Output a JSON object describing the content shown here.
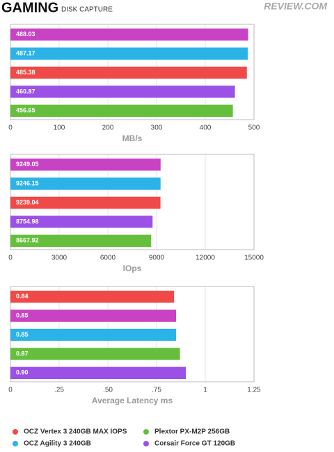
{
  "header": {
    "title": "GAMING",
    "subtitle": "DISK CAPTURE",
    "logo": "REVIEW.COM"
  },
  "chart_data": [
    {
      "type": "bar",
      "orientation": "horizontal",
      "xlabel": "MB/s",
      "values": [
        488.03,
        487.17,
        485.38,
        460.87,
        456.65
      ],
      "colors": [
        "#c843c4",
        "#2bb3e8",
        "#ef4a48",
        "#9b50e6",
        "#65bf3c"
      ],
      "xlim": [
        0,
        500
      ],
      "xticks": [
        0,
        100,
        200,
        300,
        400,
        500
      ],
      "grid": true
    },
    {
      "type": "bar",
      "orientation": "horizontal",
      "xlabel": "IOps",
      "values": [
        9249.05,
        9246.15,
        9239.04,
        8754.98,
        8667.92
      ],
      "colors": [
        "#c843c4",
        "#2bb3e8",
        "#ef4a48",
        "#9b50e6",
        "#65bf3c"
      ],
      "xlim": [
        0,
        15000
      ],
      "xticks": [
        0,
        3000,
        6000,
        9000,
        12000,
        15000
      ],
      "grid": true
    },
    {
      "type": "bar",
      "orientation": "horizontal",
      "xlabel": "Average Latency ms",
      "values": [
        0.84,
        0.85,
        0.85,
        0.87,
        0.9
      ],
      "value_labels": [
        "0.84",
        "0.85",
        "0.85",
        "0.87",
        "0.90"
      ],
      "colors": [
        "#ef4a48",
        "#c843c4",
        "#2bb3e8",
        "#65bf3c",
        "#9b50e6"
      ],
      "xlim": [
        0,
        1.25
      ],
      "xticks": [
        0,
        {
          "value": 0.25,
          "label": ".25"
        },
        {
          "value": 0.5,
          "label": ".50"
        },
        {
          "value": 0.75,
          "label": ".75"
        },
        1,
        1.25
      ],
      "grid": true
    }
  ],
  "legend": [
    {
      "name": "OCZ Vertex 3 240GB MAX IOPS",
      "color": "#ef4a48"
    },
    {
      "name": "Plextor PX-M2P 256GB",
      "color": "#65bf3c"
    },
    {
      "name": "OCZ Agility 3 240GB",
      "color": "#2bb3e8"
    },
    {
      "name": "Corsair Force GT 120GB",
      "color": "#9b50e6"
    }
  ]
}
